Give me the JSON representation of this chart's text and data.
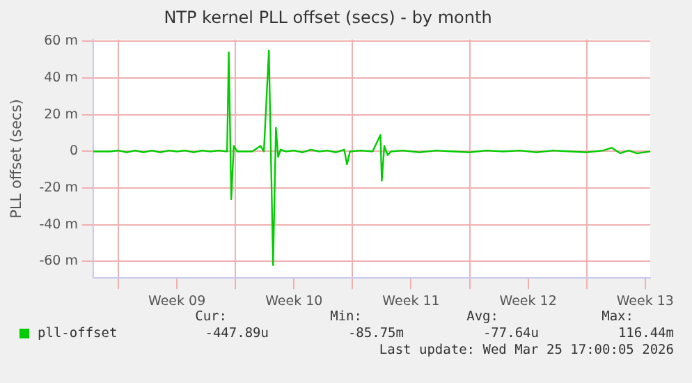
{
  "chart_data": {
    "type": "line",
    "title": "NTP kernel PLL offset (secs) - by month",
    "ylabel": "PLL offset (secs)",
    "x": [
      "2026-02-21T12:00",
      "2026-02-22T12:00",
      "2026-02-23T00:00",
      "2026-02-23T12:00",
      "2026-02-24T00:00",
      "2026-02-24T12:00",
      "2026-02-25T00:00",
      "2026-02-25T12:00",
      "2026-02-26T00:00",
      "2026-02-26T12:00",
      "2026-02-27T00:00",
      "2026-02-27T12:00",
      "2026-02-28T00:00",
      "2026-02-28T12:00",
      "2026-03-01T00:00",
      "2026-03-01T12:00",
      "2026-03-01T14:24",
      "2026-03-01T18:00",
      "2026-03-01T21:36",
      "2026-03-02T02:24",
      "2026-03-03T00:00",
      "2026-03-03T12:00",
      "2026-03-03T16:48",
      "2026-03-04T00:00",
      "2026-03-04T06:00",
      "2026-03-04T10:05",
      "2026-03-04T13:12",
      "2026-03-04T16:48",
      "2026-03-05T00:00",
      "2026-03-05T12:00",
      "2026-03-06T00:00",
      "2026-03-06T12:00",
      "2026-03-07T00:00",
      "2026-03-07T12:00",
      "2026-03-08T00:00",
      "2026-03-08T12:00",
      "2026-03-08T16:05",
      "2026-03-08T20:24",
      "2026-03-09T12:00",
      "2026-03-10T04:48",
      "2026-03-10T16:05",
      "2026-03-10T18:00",
      "2026-03-10T21:36",
      "2026-03-11T02:24",
      "2026-03-11T07:12",
      "2026-03-12T00:00",
      "2026-03-13T00:00",
      "2026-03-14T00:00",
      "2026-03-15T00:00",
      "2026-03-16T00:00",
      "2026-03-17T00:00",
      "2026-03-18T00:00",
      "2026-03-19T00:00",
      "2026-03-20T00:00",
      "2026-03-21T00:00",
      "2026-03-22T00:00",
      "2026-03-23T00:00",
      "2026-03-24T00:00",
      "2026-03-24T12:00",
      "2026-03-25T00:00",
      "2026-03-25T12:00",
      "2026-03-26T00:00",
      "2026-03-26T19:12"
    ],
    "series": [
      {
        "name": "pll-offset",
        "color": "#00cc00",
        "values": [
          0,
          0,
          0.5,
          -0.5,
          0.5,
          -0.5,
          0.5,
          -0.5,
          0.5,
          0,
          0.5,
          -0.5,
          0.5,
          0,
          0.5,
          0,
          54,
          -26,
          3,
          0,
          0,
          3,
          0,
          55,
          -62,
          13,
          -3,
          1,
          0,
          0.5,
          -0.5,
          1,
          0,
          0.5,
          -0.5,
          1,
          -7,
          0,
          0.5,
          0,
          9,
          -16,
          3,
          -2,
          0,
          0.5,
          -0.5,
          0.5,
          0,
          -0.5,
          0.5,
          0,
          0.5,
          -0.5,
          0.5,
          0,
          -0.5,
          0.5,
          2,
          -1,
          0.5,
          -1,
          0
        ]
      }
    ],
    "xlim": [
      "2026-02-21T12:00",
      "2026-03-26T19:12"
    ],
    "xticks": [
      {
        "value": "2026-02-23T00:00",
        "label": null
      },
      {
        "value": "2026-02-26T12:00",
        "label": "Week 09"
      },
      {
        "value": "2026-03-02T00:00",
        "label": null
      },
      {
        "value": "2026-03-05T12:00",
        "label": "Week 10"
      },
      {
        "value": "2026-03-09T00:00",
        "label": null
      },
      {
        "value": "2026-03-12T12:00",
        "label": "Week 11"
      },
      {
        "value": "2026-03-16T00:00",
        "label": null
      },
      {
        "value": "2026-03-19T12:00",
        "label": "Week 12"
      },
      {
        "value": "2026-03-23T00:00",
        "label": null
      },
      {
        "value": "2026-03-26T12:00",
        "label": "Week 13"
      }
    ],
    "ylim": [
      -69,
      61
    ],
    "yticks": [
      {
        "value": -60,
        "label": "-60 m"
      },
      {
        "value": -40,
        "label": "-40 m"
      },
      {
        "value": -20,
        "label": "-20 m"
      },
      0,
      {
        "value": 20,
        "label": "20 m"
      },
      {
        "value": 40,
        "label": "40 m"
      },
      {
        "value": 60,
        "label": "60 m"
      }
    ],
    "grid": true,
    "legend": "bottom left",
    "marker": "none",
    "line_style": "solid",
    "annotations": [
      "Cur:",
      "Min:",
      "Avg:",
      "Max:",
      "-447.89u",
      "-85.75m",
      "-77.64u",
      "116.44m",
      "Last update: Wed Mar 25 17:00:05 2026"
    ]
  }
}
